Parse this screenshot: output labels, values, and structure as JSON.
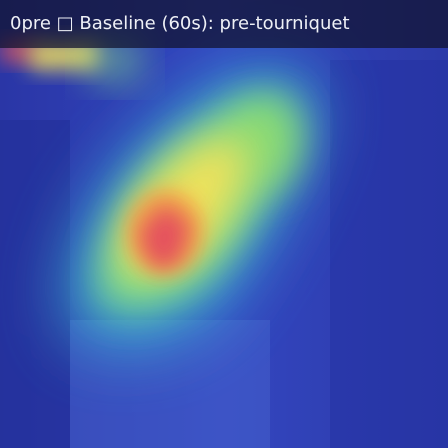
{
  "title": "0pre □ Baseline (60s): pre-tourniquet",
  "colormap": {
    "low": "#2d3db5",
    "mid_low": "#3ec4d0",
    "mid": "#7fe07a",
    "mid_high": "#f2e45a",
    "high": "#e45b66"
  }
}
